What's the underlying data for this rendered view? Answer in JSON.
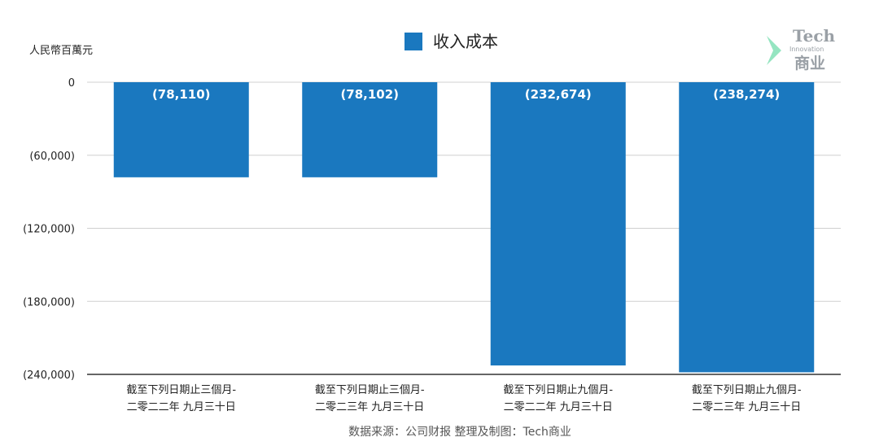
{
  "chart_data": {
    "type": "bar",
    "legend": {
      "label": "收入成本",
      "position": "top-center"
    },
    "ylabel": "人民幣百萬元",
    "ylim": [
      -240000,
      0
    ],
    "yticks": [
      0,
      -60000,
      -120000,
      -180000,
      -240000
    ],
    "ytick_labels": [
      "0",
      "(60,000)",
      "(120,000)",
      "(180,000)",
      "(240,000)"
    ],
    "grid": true,
    "categories": [
      [
        "截至下列日期止三個月-",
        "二零二二年 九月三十日"
      ],
      [
        "截至下列日期止三個月-",
        "二零二三年 九月三十日"
      ],
      [
        "截至下列日期止九個月-",
        "二零二二年 九月三十日"
      ],
      [
        "截至下列日期止九個月-",
        "二零二三年 九月三十日"
      ]
    ],
    "series": [
      {
        "name": "收入成本",
        "values": [
          -78110,
          -78102,
          -232674,
          -238274
        ],
        "labels": [
          "(78,110)",
          "(78,102)",
          "(232,674)",
          "(238,274)"
        ],
        "color": "#1a78bf"
      }
    ],
    "source": "数据来源：公司财报 整理及制图：Tech商业",
    "watermark": {
      "title": "Tech",
      "subtitle": "Innovation",
      "cn": "商业",
      "accent": "#3ecf8e"
    }
  }
}
